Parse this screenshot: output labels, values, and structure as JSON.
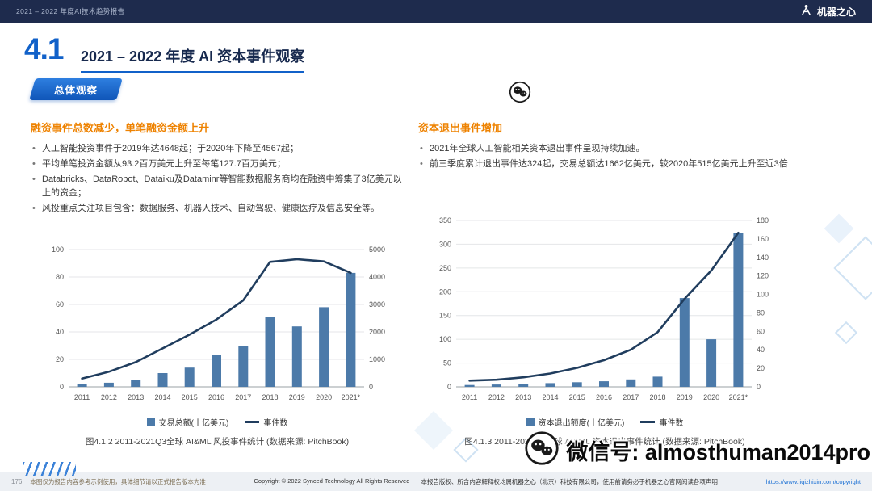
{
  "topbar": {
    "report_title": "2021 – 2022 年度AI技术趋势报告",
    "brand": "机器之心"
  },
  "header": {
    "section_number": "4.1",
    "title": "2021 – 2022 年度 AI 资本事件观察",
    "badge": "总体观察"
  },
  "left_panel": {
    "heading": "融资事件总数减少，单笔融资金额上升",
    "bullets": [
      "人工智能投资事件于2019年达4648起；于2020年下降至4567起；",
      "平均单笔投资金额从93.2百万美元上升至每笔127.7百万美元；",
      "Databricks、DataRobot、Dataiku及Dataminr等智能数据服务商均在融资中筹集了3亿美元以上的资金；",
      "风投重点关注项目包含：数据服务、机器人技术、自动驾驶、健康医疗及信息安全等。"
    ],
    "caption": "图4.1.2 2011-2021Q3全球 AI&ML 风投事件统计 (数据来源: PitchBook)"
  },
  "right_panel": {
    "heading": "资本退出事件增加",
    "bullets": [
      "2021年全球人工智能相关资本退出事件呈现持续加速。",
      "前三季度累计退出事件达324起，交易总额达1662亿美元，较2020年515亿美元上升至近3倍"
    ],
    "caption": "图4.1.3 2011-2021Q3全球 AI&ML 资本退出事件统计 (数据来源: PitchBook)"
  },
  "chart_data": [
    {
      "type": "bar+line",
      "title": "全球 AI&ML 风投事件统计",
      "categories": [
        "2011",
        "2012",
        "2013",
        "2014",
        "2015",
        "2016",
        "2017",
        "2018",
        "2019",
        "2020",
        "2021*"
      ],
      "bar_series": {
        "name": "交易总额(十亿美元)",
        "axis": "left",
        "values": [
          2,
          3,
          5,
          10,
          14,
          23,
          30,
          51,
          44,
          58,
          83
        ]
      },
      "line_series": {
        "name": "事件数",
        "axis": "right",
        "values": [
          300,
          550,
          900,
          1400,
          1900,
          2450,
          3150,
          4550,
          4648,
          4567,
          4150
        ]
      },
      "left_axis": {
        "min": 0,
        "max": 100,
        "ticks": [
          0,
          20,
          40,
          60,
          80,
          100
        ]
      },
      "right_axis": {
        "min": 0,
        "max": 5000,
        "ticks": [
          0,
          1000,
          2000,
          3000,
          4000,
          5000
        ]
      },
      "grid": true,
      "colors": {
        "bar": "#4c7aa9",
        "line": "#203d5e"
      }
    },
    {
      "type": "bar+line",
      "title": "全球 AI&ML 资本退出事件统计",
      "categories": [
        "2011",
        "2012",
        "2013",
        "2014",
        "2015",
        "2016",
        "2017",
        "2018",
        "2019",
        "2020",
        "2021*"
      ],
      "bar_series": {
        "name": "资本退出额度(十亿美元)",
        "axis": "right",
        "values": [
          2,
          2.5,
          3,
          4,
          5,
          6,
          8,
          11,
          96,
          51.5,
          166.2
        ]
      },
      "line_series": {
        "name": "事件数",
        "axis": "left",
        "values": [
          13,
          15,
          20,
          28,
          40,
          56,
          78,
          115,
          185,
          245,
          324
        ]
      },
      "left_axis": {
        "min": 0,
        "max": 350,
        "ticks": [
          0,
          50,
          100,
          150,
          200,
          250,
          300,
          350
        ]
      },
      "right_axis": {
        "min": 0,
        "max": 180,
        "ticks": [
          0,
          20,
          40,
          60,
          80,
          100,
          120,
          140,
          160,
          180
        ]
      },
      "grid": true,
      "colors": {
        "bar": "#4c7aa9",
        "line": "#203d5e"
      }
    }
  ],
  "watermark": {
    "text": "微信号: almosthuman2014pro",
    "icon": "wechat-icon"
  },
  "footer": {
    "page": "176",
    "disclaimer": "本图仅为报告内容参考示例使用，具体细节请以正式报告版本为准",
    "copyright": "Copyright © 2022 Synced Technology  All Rights Reserved",
    "notice": "本报告版权、所含内容解释权均属机器之心（北京）科技有限公司，使用前请务必于机器之心官网阅读各项声明",
    "link": "https://www.jiqizhixin.com/copyright"
  },
  "colors": {
    "accent_blue": "#1161c9",
    "heading_orange": "#ee8200",
    "bar_blue": "#4c7aa9",
    "line_navy": "#203d5e",
    "topbar_navy": "#1e2b4d"
  }
}
